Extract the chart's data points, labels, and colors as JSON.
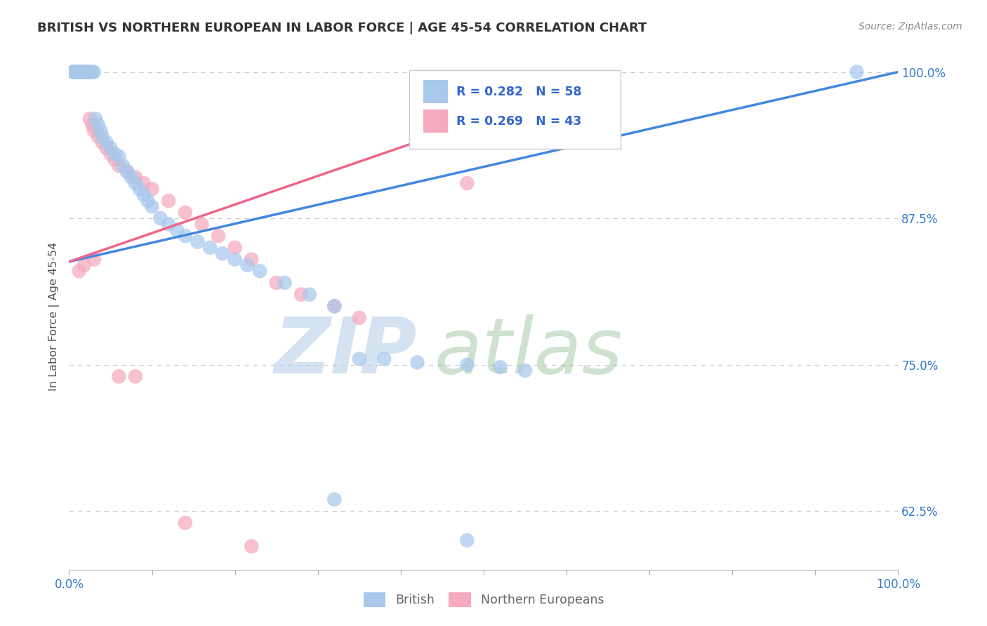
{
  "title": "BRITISH VS NORTHERN EUROPEAN IN LABOR FORCE | AGE 45-54 CORRELATION CHART",
  "source": "Source: ZipAtlas.com",
  "ylabel": "In Labor Force | Age 45-54",
  "xlim": [
    0.0,
    1.0
  ],
  "ylim": [
    0.575,
    1.008
  ],
  "x_ticks": [
    0.0,
    0.1,
    0.2,
    0.3,
    0.4,
    0.5,
    0.6,
    0.7,
    0.8,
    0.9,
    1.0
  ],
  "y_ticks": [
    0.625,
    0.75,
    0.875,
    1.0
  ],
  "y_tick_labels": [
    "62.5%",
    "75.0%",
    "87.5%",
    "100.0%"
  ],
  "legend_blue_r": "0.282",
  "legend_blue_n": "58",
  "legend_pink_r": "0.269",
  "legend_pink_n": "43",
  "blue_color": "#A8C8EC",
  "pink_color": "#F5AABF",
  "line_blue": "#4488DD",
  "line_pink": "#EE6688",
  "title_color": "#333333",
  "source_color": "#888888",
  "tick_color": "#3377CC",
  "ylabel_color": "#555555",
  "grid_color": "#CCCCCC",
  "legend_text_color": "#3366CC",
  "bottom_legend_color": "#666666",
  "blue_line_x": [
    0.0,
    1.0
  ],
  "blue_line_y": [
    0.838,
    1.0
  ],
  "pink_line_x": [
    0.0,
    0.5
  ],
  "pink_line_y": [
    0.838,
    0.96
  ],
  "blue_x": [
    0.005,
    0.007,
    0.008,
    0.009,
    0.01,
    0.011,
    0.012,
    0.013,
    0.014,
    0.015,
    0.016,
    0.017,
    0.018,
    0.019,
    0.02,
    0.022,
    0.024,
    0.026,
    0.028,
    0.03,
    0.032,
    0.035,
    0.038,
    0.04,
    0.045,
    0.05,
    0.055,
    0.06,
    0.065,
    0.07,
    0.075,
    0.08,
    0.085,
    0.09,
    0.095,
    0.1,
    0.11,
    0.12,
    0.13,
    0.14,
    0.155,
    0.17,
    0.185,
    0.2,
    0.215,
    0.23,
    0.26,
    0.29,
    0.32,
    0.35,
    0.38,
    0.42,
    0.48,
    0.52,
    0.55,
    0.32,
    0.48,
    0.95
  ],
  "blue_y": [
    1.0,
    1.0,
    1.0,
    1.0,
    1.0,
    1.0,
    1.0,
    1.0,
    1.0,
    1.0,
    1.0,
    1.0,
    1.0,
    1.0,
    1.0,
    1.0,
    1.0,
    1.0,
    1.0,
    1.0,
    0.96,
    0.955,
    0.95,
    0.945,
    0.94,
    0.935,
    0.93,
    0.928,
    0.92,
    0.915,
    0.91,
    0.905,
    0.9,
    0.895,
    0.89,
    0.885,
    0.875,
    0.87,
    0.865,
    0.86,
    0.855,
    0.85,
    0.845,
    0.84,
    0.835,
    0.83,
    0.82,
    0.81,
    0.8,
    0.755,
    0.755,
    0.752,
    0.75,
    0.748,
    0.745,
    0.635,
    0.6,
    1.0
  ],
  "pink_x": [
    0.005,
    0.006,
    0.007,
    0.008,
    0.009,
    0.01,
    0.012,
    0.014,
    0.016,
    0.018,
    0.02,
    0.022,
    0.025,
    0.028,
    0.03,
    0.035,
    0.04,
    0.045,
    0.05,
    0.055,
    0.06,
    0.07,
    0.08,
    0.09,
    0.1,
    0.12,
    0.14,
    0.16,
    0.18,
    0.2,
    0.22,
    0.25,
    0.28,
    0.32,
    0.35,
    0.48,
    0.22,
    0.14,
    0.08,
    0.06,
    0.03,
    0.018,
    0.012
  ],
  "pink_y": [
    1.0,
    1.0,
    1.0,
    1.0,
    1.0,
    1.0,
    1.0,
    1.0,
    1.0,
    1.0,
    1.0,
    1.0,
    0.96,
    0.955,
    0.95,
    0.945,
    0.94,
    0.935,
    0.93,
    0.925,
    0.92,
    0.915,
    0.91,
    0.905,
    0.9,
    0.89,
    0.88,
    0.87,
    0.86,
    0.85,
    0.84,
    0.82,
    0.81,
    0.8,
    0.79,
    0.905,
    0.595,
    0.615,
    0.74,
    0.74,
    0.84,
    0.835,
    0.83
  ]
}
